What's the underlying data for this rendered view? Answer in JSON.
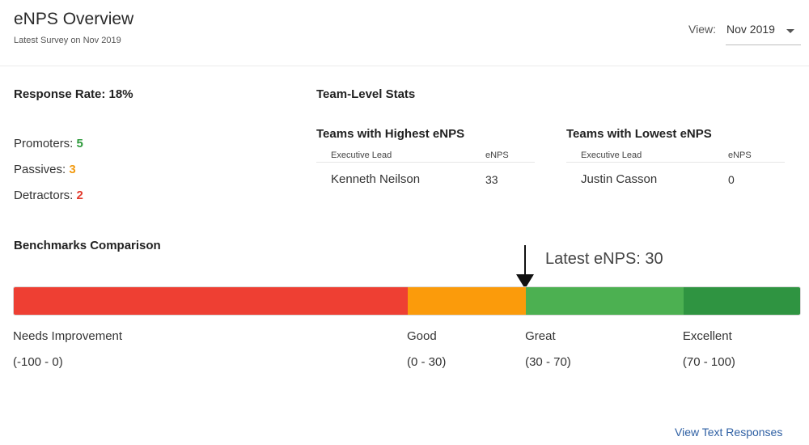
{
  "header": {
    "title": "eNPS Overview",
    "subtitle": "Latest Survey on Nov 2019",
    "view_label": "View:",
    "view_value": "Nov 2019"
  },
  "summary": {
    "response_rate": "Response Rate: 18%",
    "promoters_label": "Promoters:",
    "promoters_value": "5",
    "passives_label": "Passives:",
    "passives_value": "3",
    "detractors_label": "Detractors:",
    "detractors_value": "2",
    "colors": {
      "promoters": "#2e9a3c",
      "passives": "#f29b12",
      "detractors": "#e23b2e"
    }
  },
  "team_stats": {
    "title": "Team-Level Stats",
    "highest": {
      "title": "Teams with Highest eNPS",
      "columns": [
        "Executive Lead",
        "eNPS"
      ],
      "rows": [
        {
          "lead": "Kenneth Neilson",
          "enps": "33"
        }
      ]
    },
    "lowest": {
      "title": "Teams with Lowest eNPS",
      "columns": [
        "Executive Lead",
        "eNPS"
      ],
      "rows": [
        {
          "lead": "Justin Casson",
          "enps": "0"
        }
      ]
    }
  },
  "benchmarks": {
    "title": "Benchmarks Comparison",
    "latest_label": "Latest eNPS: 30",
    "latest_value": 30,
    "scale_min": -100,
    "scale_max": 100,
    "segments": [
      {
        "name": "Needs Improvement",
        "range": "(-100 - 0)",
        "from": -100,
        "to": 0,
        "color": "#ee3f33"
      },
      {
        "name": "Good",
        "range": "(0 - 30)",
        "from": 0,
        "to": 30,
        "color": "#fb9b0b"
      },
      {
        "name": "Great",
        "range": "(30 - 70)",
        "from": 30,
        "to": 70,
        "color": "#4cb051"
      },
      {
        "name": "Excellent",
        "range": "(70 - 100)",
        "from": 70,
        "to": 100,
        "color": "#2f9441"
      }
    ]
  },
  "footer": {
    "link_label": "View Text Responses"
  }
}
